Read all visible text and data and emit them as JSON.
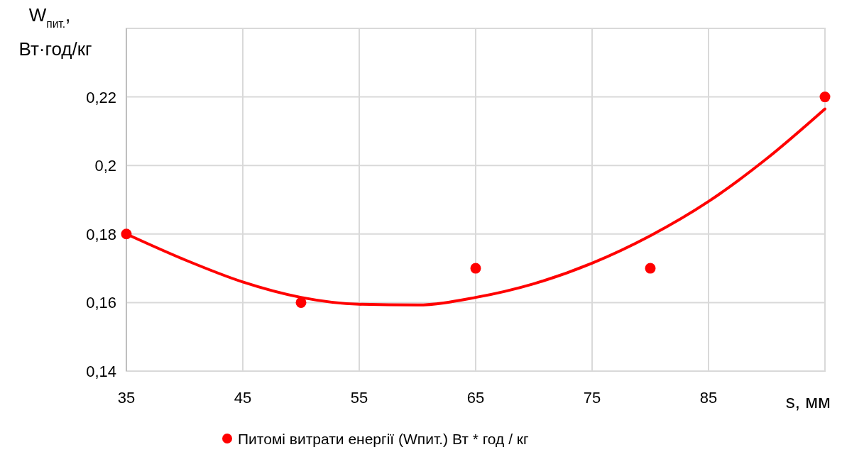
{
  "chart_data": {
    "type": "scatter",
    "xlabel": "s, мм",
    "ylabel": "W$_{пит.}$,\nВт·год/кг",
    "xlim": [
      35,
      95
    ],
    "xticks": [
      35,
      45,
      55,
      65,
      75,
      85
    ],
    "ylim": [
      0.14,
      0.24
    ],
    "yticks": [
      {
        "value": 0.14,
        "label": "0,14"
      },
      {
        "value": 0.16,
        "label": "0,16"
      },
      {
        "value": 0.18,
        "label": "0,18"
      },
      {
        "value": 0.2,
        "label": "0,2"
      },
      {
        "value": 0.22,
        "label": "0,22"
      }
    ],
    "grid": true,
    "legend": "bottom",
    "series": [
      {
        "name": "Питомі витрати енергії (Wпит.) Вт * год / кг",
        "marker": "circle",
        "color": "#ff0000",
        "x": [
          35,
          50,
          65,
          80,
          95
        ],
        "values": [
          0.18,
          0.16,
          0.17,
          0.17,
          0.22
        ]
      },
      {
        "type": "line",
        "marker": "none",
        "color": "#ff0000",
        "x": [
          35,
          40,
          45,
          50,
          55,
          60,
          65,
          70,
          75,
          80,
          85,
          90,
          95
        ],
        "values": [
          0.18,
          0.1725,
          0.166,
          0.1615,
          0.1595,
          0.1593,
          0.1615,
          0.1655,
          0.1715,
          0.1795,
          0.1895,
          0.202,
          0.2165
        ]
      }
    ]
  }
}
